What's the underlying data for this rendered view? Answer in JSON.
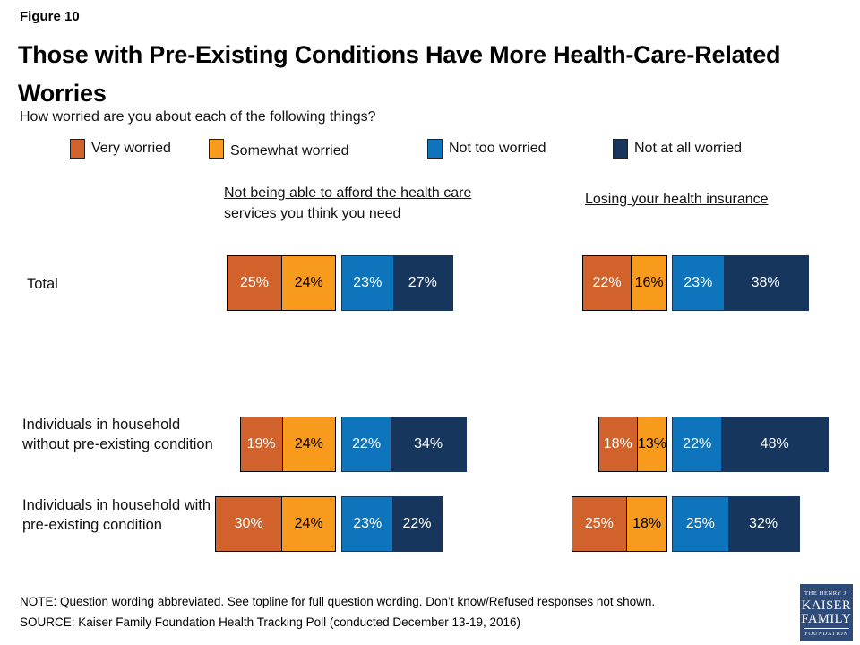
{
  "header": {
    "figure_label": "Figure 10",
    "title": "Those with Pre-Existing Conditions Have More Health-Care-Related Worries",
    "subtitle": "How worried are you about each of the following things?"
  },
  "legend": [
    {
      "label": "Very worried",
      "color": "#d2622b"
    },
    {
      "label": "Somewhat worried",
      "color": "#f89a1c"
    },
    {
      "label": "Not too worried",
      "color": "#0e74bc"
    },
    {
      "label": "Not at all worried",
      "color": "#17365d"
    }
  ],
  "chart_data": {
    "type": "bar",
    "variant": "diverging-stacked-horizontal",
    "unit": "%",
    "series_names": [
      "Very worried",
      "Somewhat worried",
      "Not too worried",
      "Not at all worried"
    ],
    "series_colors": [
      "#d2622b",
      "#f89a1c",
      "#0e74bc",
      "#17365d"
    ],
    "value_label_format": "{v}%",
    "row_labels": [
      "Total",
      "Individuals in household without pre-existing condition",
      "Individuals in household with pre-existing condition"
    ],
    "columns": [
      {
        "header": "Not being able to afford the health care services you think you need",
        "rows": [
          {
            "category": "Total",
            "values": [
              25,
              24,
              23,
              27
            ]
          },
          {
            "category": "Individuals in household without pre-existing condition",
            "values": [
              19,
              24,
              22,
              34
            ]
          },
          {
            "category": "Individuals in household with pre-existing condition",
            "values": [
              30,
              24,
              23,
              22
            ]
          }
        ]
      },
      {
        "header": "Losing your health insurance",
        "rows": [
          {
            "category": "Total",
            "values": [
              22,
              16,
              23,
              38
            ]
          },
          {
            "category": "Individuals in household without pre-existing condition",
            "values": [
              18,
              13,
              22,
              48
            ]
          },
          {
            "category": "Individuals in household with pre-existing condition",
            "values": [
              25,
              18,
              25,
              32
            ]
          }
        ]
      }
    ]
  },
  "footer": {
    "note": "NOTE: Question wording abbreviated. See topline for full question wording. Don’t know/Refused responses not shown.",
    "source": "SOURCE: Kaiser Family Foundation Health Tracking Poll (conducted December 13-19, 2016)"
  },
  "logo": {
    "line1": "THE HENRY J.",
    "line2": "KAISER",
    "line3": "FAMILY",
    "line4": "FOUNDATION"
  }
}
